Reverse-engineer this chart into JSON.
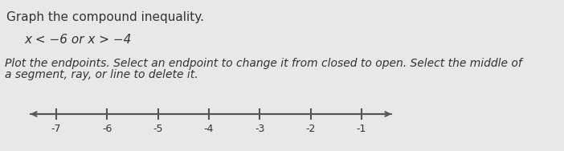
{
  "title_text": "Graph the compound inequality.",
  "inequality_text": "x < -6 or x > −4",
  "instruction_text": "Plot the endpoints. Select an endpoint to change it from closed to open. Select the middle of\na segment, ray, or line to delete it.",
  "x_min": -7.7,
  "x_max": -0.6,
  "tick_positions": [
    -7,
    -6,
    -5,
    -4,
    -3,
    -2,
    -1
  ],
  "tick_labels": [
    "-7",
    "-6",
    "-5",
    "-4",
    "-3",
    "-2",
    "-1"
  ],
  "axis_color": "#555555",
  "background_color": "#e8e8e8",
  "text_color": "#333333",
  "title_fontsize": 11,
  "inequality_fontsize": 11,
  "instruction_fontsize": 10,
  "tick_label_fontsize": 9,
  "line_color": "#555555"
}
